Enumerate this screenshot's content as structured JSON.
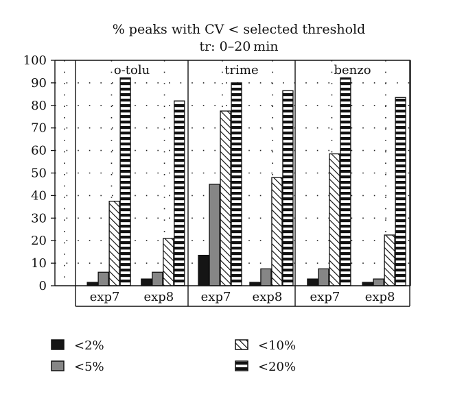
{
  "chart_data": {
    "type": "bar",
    "title": "% peaks with CV < selected threshold",
    "subtitle": "tr: 0–20 min",
    "ylim": [
      0,
      100
    ],
    "yticks": [
      "0",
      "10",
      "20",
      "30",
      "40",
      "50",
      "60",
      "70",
      "80",
      "90",
      "100"
    ],
    "grid": "dotted",
    "panels": [
      {
        "name": "o-tolu",
        "groups": [
          {
            "label": "exp7",
            "values": [
              1.5,
              6,
              37.5,
              92.5
            ]
          },
          {
            "label": "exp8",
            "values": [
              3,
              6,
              21,
              82
            ]
          }
        ]
      },
      {
        "name": "trime",
        "groups": [
          {
            "label": "exp7",
            "values": [
              13.5,
              45,
              77.5,
              90
            ]
          },
          {
            "label": "exp8",
            "values": [
              1.5,
              7.5,
              48,
              86.5
            ]
          }
        ]
      },
      {
        "name": "benzo",
        "groups": [
          {
            "label": "exp7",
            "values": [
              3,
              7.5,
              58.5,
              92.5
            ]
          },
          {
            "label": "exp8",
            "values": [
              1.5,
              3,
              22.5,
              83.5
            ]
          }
        ]
      }
    ],
    "series": [
      {
        "name": "<2%",
        "pattern": "solid-black"
      },
      {
        "name": "<5%",
        "pattern": "solid-gray"
      },
      {
        "name": "<10%",
        "pattern": "diagonal-hatch"
      },
      {
        "name": "<20%",
        "pattern": "horizontal-stripes"
      }
    ],
    "legend_position": "bottom"
  },
  "colors": {
    "black": "#151515",
    "gray": "#868686",
    "stroke": "#111111"
  }
}
